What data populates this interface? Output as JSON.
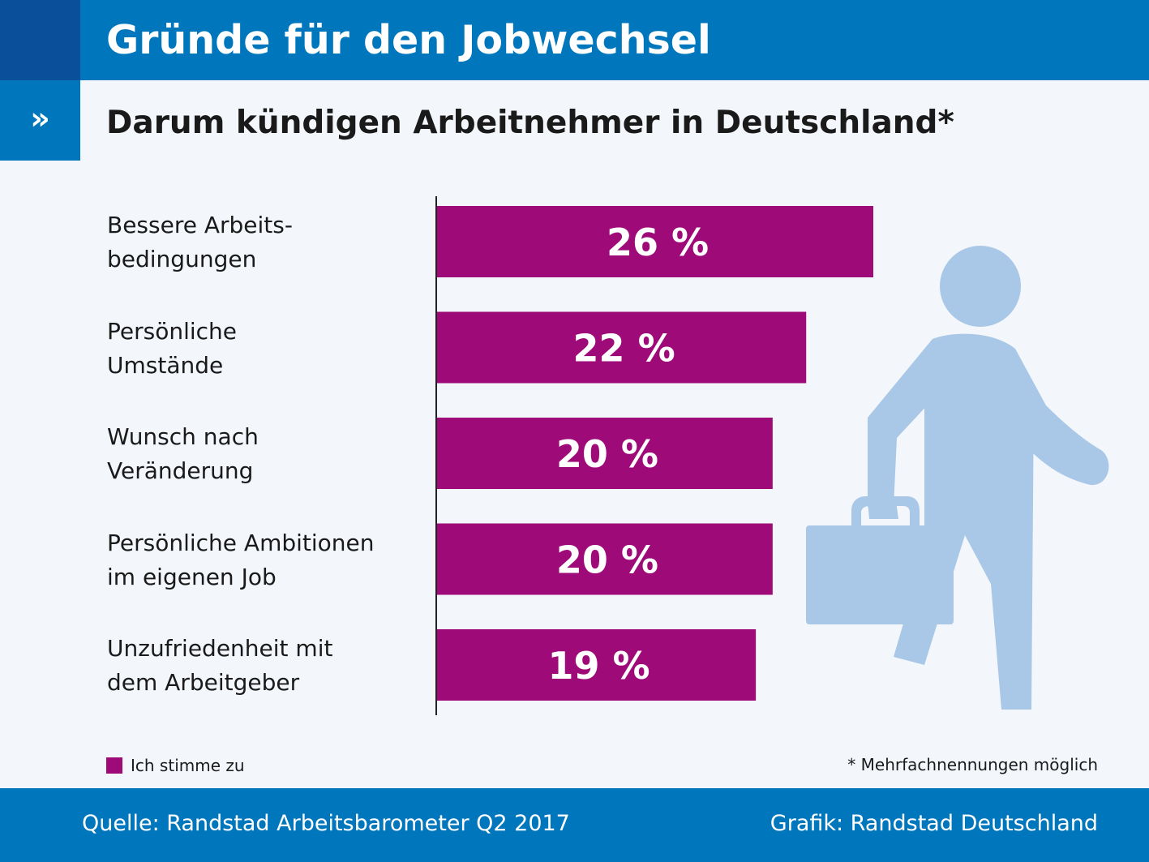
{
  "header": {
    "title": "Gründe für den Jobwechsel",
    "arrow_symbol": "»"
  },
  "subtitle": "Darum kündigen Arbeitnehmer in Deutschland*",
  "chart_data": {
    "type": "bar",
    "orientation": "horizontal",
    "title": "Darum kündigen Arbeitnehmer in Deutschland*",
    "categories": [
      "Bessere Arbeits-\nbedingungen",
      "Persönliche\nUmstände",
      "Wunsch nach\nVeränderung",
      "Persönliche Ambitionen\nim eigenen Job",
      "Unzufriedenheit mit\ndem Arbeitgeber"
    ],
    "series": [
      {
        "name": "Ich stimme zu",
        "values": [
          26,
          22,
          20,
          20,
          19
        ],
        "color": "#9e0a78"
      }
    ],
    "value_labels": [
      "26 %",
      "22 %",
      "20 %",
      "20 %",
      "19 %"
    ],
    "xlim": [
      0,
      26
    ],
    "grid": false,
    "legend": "bottom-left"
  },
  "legend": {
    "label": "Ich stimme zu"
  },
  "note": "* Mehrfachnennungen möglich",
  "footer": {
    "source": "Quelle: Randstad Arbeitsbarometer Q2 2017",
    "credit": "Grafik: Randstad Deutschland"
  },
  "colors": {
    "brand_blue": "#0077bd",
    "dark_blue": "#0a4f9a",
    "bar": "#9e0a78",
    "figure": "#a9c7e6",
    "background": "#f3f6fb"
  },
  "illustration": {
    "icon": "walking-person-with-briefcase-icon"
  }
}
